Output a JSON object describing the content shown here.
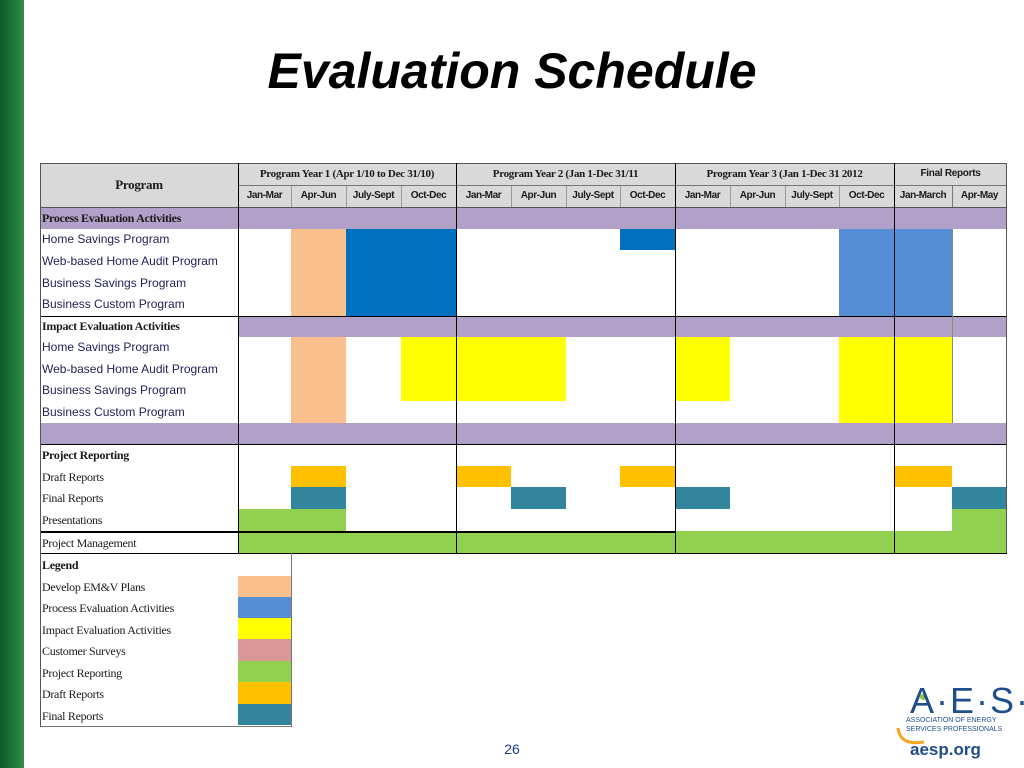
{
  "slide": {
    "title": "Evaluation Schedule",
    "page_number": "26"
  },
  "colors": {
    "develop_emv": "#f9c08e",
    "process_eval": "#558ed5",
    "process_eval_dark": "#0070c0",
    "impact_eval": "#ffff00",
    "customer_surveys": "#d99795",
    "project_reporting": "#92d050",
    "draft_reports": "#ffc000",
    "final_reports": "#31859c",
    "section_band": "#b1a0c7",
    "header_gray": "#d9d9d9"
  },
  "table": {
    "program_header": "Program",
    "year_headers": [
      "Program Year 1 (Apr 1/10 to Dec 31/10)",
      "Program Year 2 (Jan 1-Dec 31/11",
      "Program Year 3 (Jan 1-Dec 31 2012",
      "Final Reports"
    ],
    "quarter_headers": [
      "Jan-Mar",
      "Apr-Jun",
      "July-Sept",
      "Oct-Dec",
      "Jan-Mar",
      "Apr-Jun",
      "July-Sept",
      "Oct-Dec",
      "Jan-Mar",
      "Apr-Jun",
      "July-Sept",
      "Oct-Dec",
      "Jan-March",
      "Apr-May"
    ],
    "sections": {
      "process": {
        "title": "Process Evaluation Activities",
        "rows": [
          "Home Savings Program",
          "Web-based Home Audit Program",
          "Business Savings Program",
          "Business Custom Program"
        ]
      },
      "impact": {
        "title": "Impact Evaluation Activities",
        "rows": [
          "Home Savings Program",
          "Web-based Home Audit Program",
          "Business Savings Program",
          "Business Custom Program"
        ]
      },
      "reporting": {
        "title": "Project Reporting",
        "rows": [
          "Draft Reports",
          "Final Reports",
          "Presentations",
          "Project Management"
        ]
      }
    },
    "legend": {
      "title": "Legend",
      "items": [
        {
          "label": "Develop EM&V Plans",
          "color": "#f9c08e"
        },
        {
          "label": "Process Evaluation Activities",
          "color": "#558ed5"
        },
        {
          "label": "Impact Evaluation Activities",
          "color": "#ffff00"
        },
        {
          "label": "Customer Surveys",
          "color": "#d99795"
        },
        {
          "label": "Project Reporting",
          "color": "#92d050"
        },
        {
          "label": "Draft Reports",
          "color": "#ffc000"
        },
        {
          "label": "Final Reports",
          "color": "#31859c"
        }
      ]
    }
  },
  "logo": {
    "name": "A·E·S·P",
    "subtitle": "ASSOCIATION OF ENERGY SERVICES PROFESSIONALS",
    "url": "aesp.org"
  }
}
